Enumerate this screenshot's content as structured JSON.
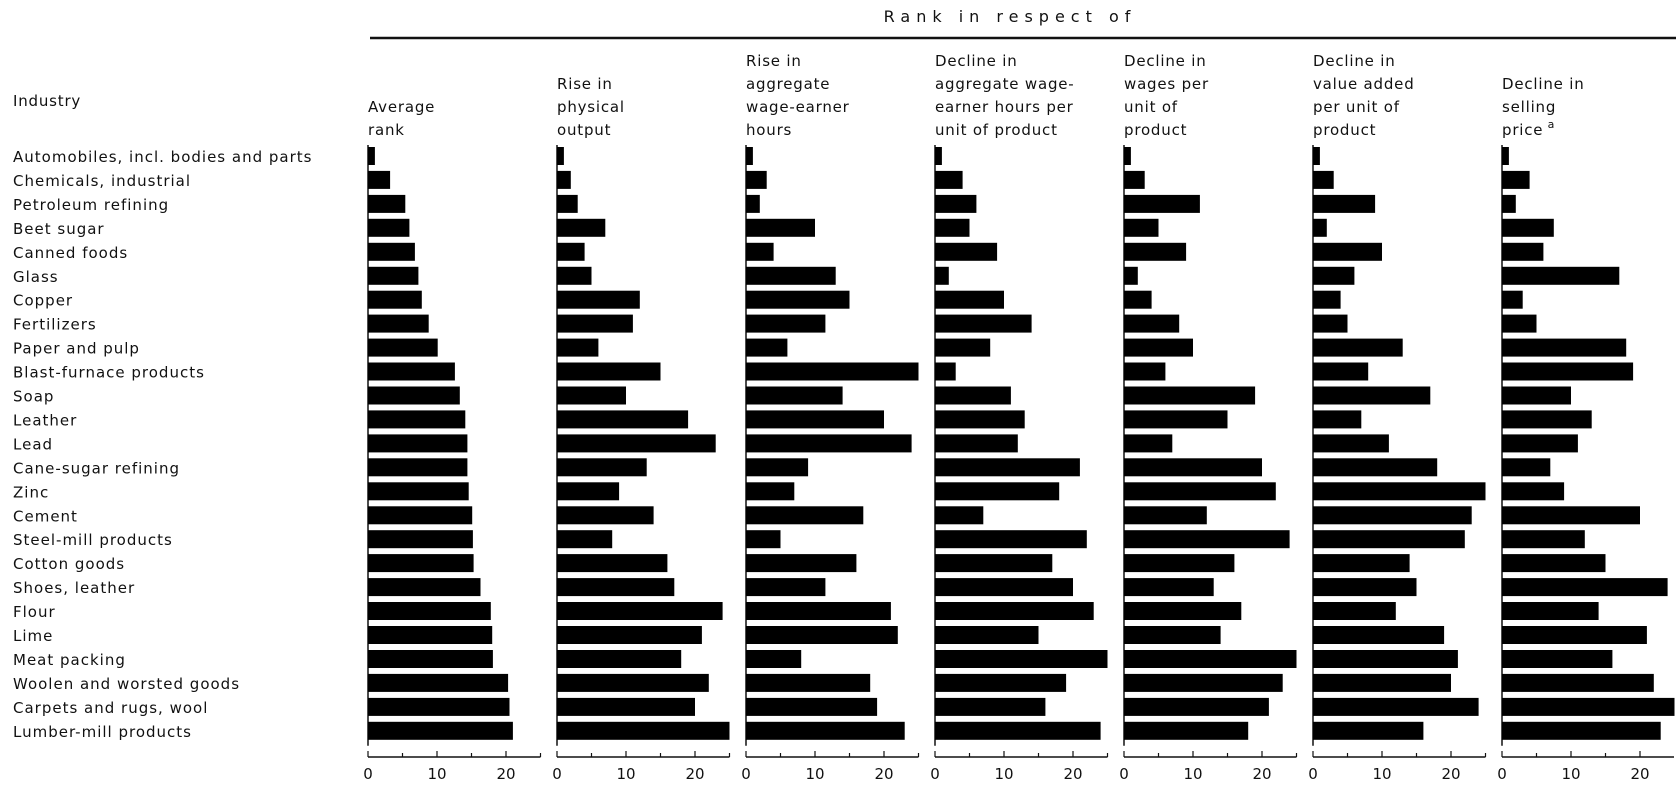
{
  "spanner_title": "Rank in respect of",
  "chart_data": {
    "type": "bar",
    "orientation": "horizontal",
    "row_header": "Industry",
    "categories": [
      "Automobiles, incl. bodies and parts",
      "Chemicals, industrial",
      "Petroleum refining",
      "Beet sugar",
      "Canned foods",
      "Glass",
      "Copper",
      "Fertilizers",
      "Paper and pulp",
      "Blast-furnace products",
      "Soap",
      "Leather",
      "Lead",
      "Cane-sugar refining",
      "Zinc",
      "Cement",
      "Steel-mill products",
      "Cotton goods",
      "Shoes, leather",
      "Flour",
      "Lime",
      "Meat packing",
      "Woolen and worsted goods",
      "Carpets and rugs, wool",
      "Lumber-mill products"
    ],
    "xlim": [
      0,
      25
    ],
    "xticks": [
      "0",
      "10",
      "20"
    ],
    "bar_color": "#000000",
    "panels": [
      {
        "header": [
          "Average",
          "rank"
        ],
        "values": [
          1,
          3.2,
          5.4,
          6,
          6.8,
          7.3,
          7.8,
          8.8,
          10.1,
          12.6,
          13.3,
          14.1,
          14.4,
          14.4,
          14.6,
          15.1,
          15.2,
          15.3,
          16.3,
          17.8,
          18,
          18.1,
          20.3,
          20.5,
          21
        ]
      },
      {
        "header": [
          "Rise in",
          "physical",
          "output"
        ],
        "values": [
          1,
          2,
          3,
          7,
          4,
          5,
          12,
          11,
          6,
          15,
          10,
          19,
          23,
          13,
          9,
          14,
          8,
          16,
          17,
          24,
          21,
          18,
          22,
          20,
          25
        ]
      },
      {
        "header": [
          "Rise in",
          "aggregate",
          "wage-earner",
          "hours"
        ],
        "values": [
          1,
          3,
          2,
          10,
          4,
          13,
          15,
          11.5,
          6,
          25,
          14,
          20,
          24,
          9,
          7,
          17,
          5,
          16,
          11.5,
          21,
          22,
          8,
          18,
          19,
          23
        ]
      },
      {
        "header": [
          "Decline in",
          "aggregate wage-",
          "earner hours per",
          "unit of product"
        ],
        "values": [
          1,
          4,
          6,
          5,
          9,
          2,
          10,
          14,
          8,
          3,
          11,
          13,
          12,
          21,
          18,
          7,
          22,
          17,
          20,
          23,
          15,
          25,
          19,
          16,
          24
        ]
      },
      {
        "header": [
          "Decline in",
          "wages per",
          "unit of",
          "product"
        ],
        "values": [
          1,
          3,
          11,
          5,
          9,
          2,
          4,
          8,
          10,
          6,
          19,
          15,
          7,
          20,
          22,
          12,
          24,
          16,
          13,
          17,
          14,
          25,
          23,
          21,
          18
        ]
      },
      {
        "header": [
          "Decline in",
          "value added",
          "per unit of",
          "product"
        ],
        "values": [
          1,
          3,
          9,
          2,
          10,
          6,
          4,
          5,
          13,
          8,
          17,
          7,
          11,
          18,
          25,
          23,
          22,
          14,
          15,
          12,
          19,
          21,
          20,
          24,
          16
        ]
      },
      {
        "header": [
          "Decline in",
          "selling",
          "price"
        ],
        "header_footnote": "a",
        "values": [
          1,
          4,
          2,
          7.5,
          6,
          17,
          3,
          5,
          18,
          19,
          10,
          13,
          11,
          7,
          9,
          20,
          12,
          15,
          24,
          14,
          21,
          16,
          22,
          25,
          23
        ]
      }
    ]
  }
}
